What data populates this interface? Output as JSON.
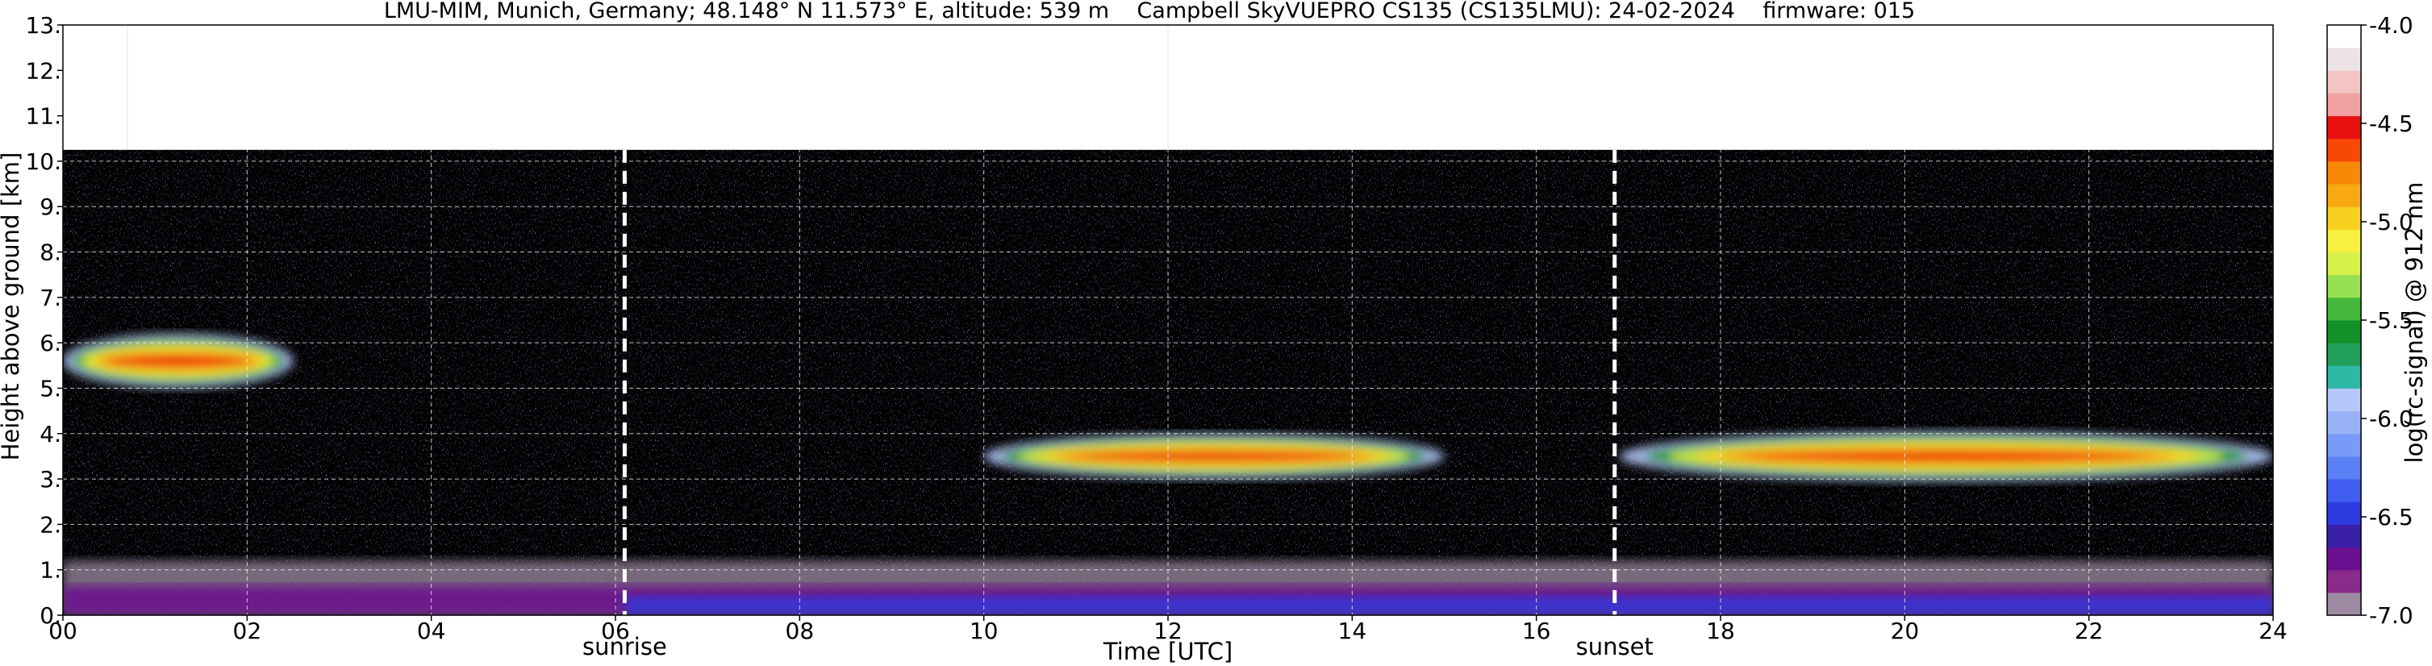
{
  "chart_data": {
    "type": "heatmap",
    "title": "LMU-MIM, Munich, Germany; 48.148° N 11.573° E, altitude: 539 m    Campbell SkyVUEPRO CS135 (CS135LMU): 24-02-2024    firmware: 015",
    "xlabel": "Time [UTC]",
    "ylabel": "Height above ground [km]",
    "xlim": [
      0,
      24
    ],
    "ylim": [
      0,
      13
    ],
    "x_ticks": [
      "00",
      "02",
      "04",
      "06",
      "08",
      "10",
      "12",
      "14",
      "16",
      "18",
      "20",
      "22",
      "24"
    ],
    "x_tick_values": [
      0,
      2,
      4,
      6,
      8,
      10,
      12,
      14,
      16,
      18,
      20,
      22,
      24
    ],
    "y_ticks": [
      "0.",
      "1.",
      "2.",
      "3.",
      "4.",
      "5.",
      "6.",
      "7.",
      "8.",
      "9.",
      "10.",
      "11.",
      "12.",
      "13."
    ],
    "y_tick_values": [
      0,
      1,
      2,
      3,
      4,
      5,
      6,
      7,
      8,
      9,
      10,
      11,
      12,
      13
    ],
    "grid": true,
    "data_top_km": 10.25,
    "colorbar": {
      "label": "log(rc-signal) @ 912 nm",
      "range": [
        -7.0,
        -4.0
      ],
      "ticks": [
        "-4.0",
        "-4.5",
        "-5.0",
        "-5.5",
        "-6.0",
        "-6.5",
        "-7.0"
      ],
      "tick_values": [
        -4.0,
        -4.5,
        -5.0,
        -5.5,
        -6.0,
        -6.5,
        -7.0
      ],
      "colors": [
        "#9e8aa3",
        "#8a2a8a",
        "#6a0f8f",
        "#3a1fa8",
        "#2d3ae0",
        "#3f5ef0",
        "#5b7ff5",
        "#7a9af7",
        "#98b2f8",
        "#b5c8fa",
        "#2fb8a6",
        "#22a05a",
        "#129128",
        "#46b83c",
        "#96e052",
        "#d8f04a",
        "#f8f040",
        "#f8d020",
        "#f8a810",
        "#f88808",
        "#f84808",
        "#e81010",
        "#f0a0a0",
        "#f2c4c4",
        "#ece4e4",
        "#ffffff"
      ]
    },
    "annotations": [
      {
        "text": "sunrise",
        "x": 6.1
      },
      {
        "text": "sunset",
        "x": 16.85
      }
    ],
    "features": [
      {
        "kind": "cloud",
        "x_range": [
          0,
          2.5
        ],
        "y_center": 5.6,
        "thickness": 1.2
      },
      {
        "kind": "cloud",
        "x_range": [
          10,
          15
        ],
        "y_center": 3.5,
        "thickness": 1.0
      },
      {
        "kind": "cloud",
        "x_range": [
          16.9,
          24
        ],
        "y_center": 3.5,
        "thickness": 1.1
      },
      {
        "kind": "boundary_layer",
        "x_range": [
          0,
          24
        ],
        "y_top": 1.2
      }
    ]
  }
}
